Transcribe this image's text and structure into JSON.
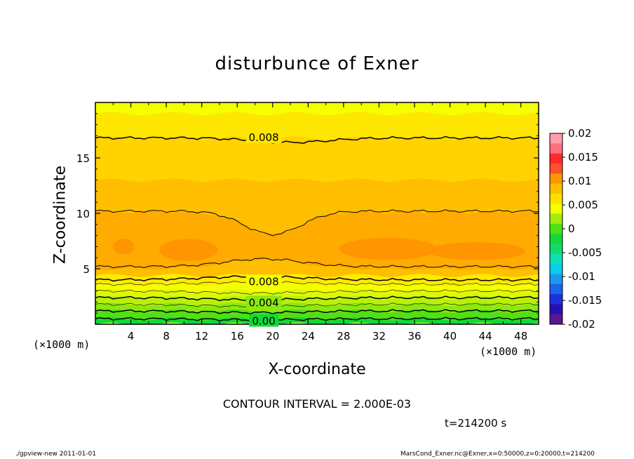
{
  "title": "disturbunce of Exner",
  "xlabel": "X-coordinate",
  "ylabel": "Z-coordinate",
  "x_unit_left": "(×1000 m)",
  "x_unit_right": "(×1000 m)",
  "contour_interval": "CONTOUR INTERVAL = 2.000E-03",
  "time_label": "t=214200 s",
  "footer_left": "./gpview-new   2011-01-01",
  "footer_right": "MarsCond_Exner.nc@Exner,x=0:50000,z=0:20000,t=214200",
  "chart_data": {
    "type": "heatmap",
    "title": "disturbunce of Exner",
    "xlabel": "X-coordinate",
    "ylabel": "Z-coordinate",
    "xlim": [
      0,
      50
    ],
    "ylim": [
      0,
      20
    ],
    "x_ticks": [
      4,
      8,
      12,
      16,
      20,
      24,
      28,
      32,
      36,
      40,
      44,
      48
    ],
    "y_ticks": [
      5,
      10,
      15
    ],
    "colorbar": {
      "range": [
        -0.02,
        0.02
      ],
      "tick_labels": [
        "0.02",
        "0.015",
        "0.01",
        "0.005",
        "0",
        "-0.005",
        "-0.01",
        "-0.015",
        "-0.02"
      ],
      "levels": [
        -0.02,
        -0.0175,
        -0.015,
        -0.0125,
        -0.01,
        -0.0075,
        -0.005,
        -0.0025,
        0,
        0.0025,
        0.005,
        0.0075,
        0.01,
        0.0125,
        0.015,
        0.0175,
        0.02
      ],
      "colors": [
        "#5c1690",
        "#2810b0",
        "#1c30e0",
        "#1e64ea",
        "#1c98f0",
        "#0ccce8",
        "#0ee0b4",
        "#12da6a",
        "#14d838",
        "#50e014",
        "#a2ec10",
        "#f4ff00",
        "#ffde00",
        "#ffbe00",
        "#ff9500",
        "#ff5030",
        "#ff2a2a",
        "#ff7080",
        "#ff9ea8"
      ]
    },
    "bands": [
      {
        "z_range": [
          0,
          0.5
        ],
        "value": 0.001,
        "color": "#14d838"
      },
      {
        "z_range": [
          0.5,
          1.2
        ],
        "value": 0.002,
        "color": "#50e014"
      },
      {
        "z_range": [
          1.2,
          1.8
        ],
        "value": 0.003,
        "color": "#8ce80e"
      },
      {
        "z_range": [
          1.8,
          2.4
        ],
        "value": 0.004,
        "color": "#b8f00a"
      },
      {
        "z_range": [
          2.4,
          3.0
        ],
        "value": 0.005,
        "color": "#dcf808"
      },
      {
        "z_range": [
          3.0,
          3.6
        ],
        "value": 0.006,
        "color": "#f4ff00"
      },
      {
        "z_range": [
          3.6,
          4.4
        ],
        "value": 0.007,
        "color": "#ffea00"
      },
      {
        "z_range": [
          4.4,
          13.0
        ],
        "value": 0.0095,
        "color": "#ffbe00"
      },
      {
        "z_range": [
          13.0,
          16.8
        ],
        "value": 0.0085,
        "color": "#ffd200"
      },
      {
        "z_range": [
          16.8,
          19.0
        ],
        "value": 0.0075,
        "color": "#ffe600"
      },
      {
        "z_range": [
          19.0,
          20.0
        ],
        "value": 0.007,
        "color": "#f4ff00"
      }
    ],
    "contour_values": [
      0.0,
      0.004,
      0.008
    ],
    "contour_labels": [
      "0.00",
      "0.004",
      "0.008",
      "0.008"
    ],
    "contour_interval": 0.002
  }
}
